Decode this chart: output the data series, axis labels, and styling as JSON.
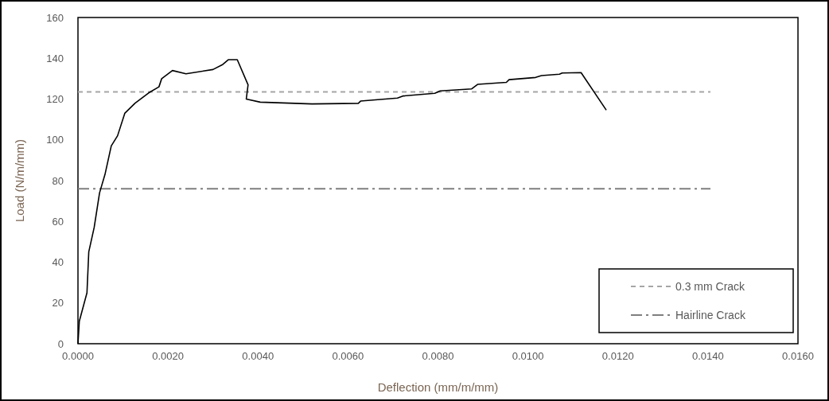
{
  "chart_data": {
    "type": "line",
    "xlabel": "Deflection (mm/m/mm)",
    "ylabel": "Load (N/m/mm)",
    "xlim": [
      0,
      0.016
    ],
    "xticks": [
      {
        "value": 0,
        "label": "0.0000"
      },
      {
        "value": 0.002,
        "label": "0.0020"
      },
      {
        "value": 0.004,
        "label": "0.0040"
      },
      {
        "value": 0.006,
        "label": "0.0060"
      },
      {
        "value": 0.008,
        "label": "0.0080"
      },
      {
        "value": 0.01,
        "label": "0.0100"
      },
      {
        "value": 0.012,
        "label": "0.0120"
      },
      {
        "value": 0.014,
        "label": "0.0140"
      },
      {
        "value": 0.016,
        "label": "0.0160"
      }
    ],
    "ylim": [
      0,
      160
    ],
    "yticks": [
      0,
      20,
      40,
      60,
      80,
      100,
      120,
      140,
      160
    ],
    "grid": false,
    "legend": "bottom right",
    "marker": "none",
    "line_style": "solid",
    "series": [
      {
        "color": "#000000",
        "x": [
          0,
          3e-05,
          0.0002,
          0.00024,
          0.00036,
          0.00048,
          0.0006,
          0.00074,
          0.00088,
          0.00104,
          0.00127,
          0.00157,
          0.0018,
          0.00186,
          0.0021,
          0.0024,
          0.003,
          0.00322,
          0.00334,
          0.00354,
          0.00378,
          0.00374,
          0.00405,
          0.0052,
          0.00623,
          0.00628,
          0.0071,
          0.00722,
          0.00793,
          0.00805,
          0.00875,
          0.00888,
          0.00952,
          0.00958,
          0.01017,
          0.0103,
          0.0107,
          0.01076,
          0.01118,
          0.01174
        ],
        "values": [
          0,
          11,
          25,
          45,
          57,
          74,
          83,
          97,
          102,
          113,
          118,
          123,
          126,
          130,
          134,
          132.4,
          134.5,
          137,
          139.3,
          139.3,
          127,
          120,
          118.5,
          117.6,
          117.9,
          119,
          120.5,
          121.5,
          122.8,
          124,
          125,
          127.2,
          128.2,
          129.5,
          130.6,
          131.5,
          132.2,
          132.8,
          133,
          114.6
        ]
      }
    ],
    "ref_lines": [
      {
        "axis": "y",
        "value": 123.5,
        "label": "0.3 mm Crack",
        "color": "#a6a6a6",
        "line_style": "dashed"
      },
      {
        "axis": "y",
        "value": 76,
        "label": "Hairline Crack",
        "color": "#7f7f7f",
        "line_style": "dashdot"
      }
    ]
  }
}
